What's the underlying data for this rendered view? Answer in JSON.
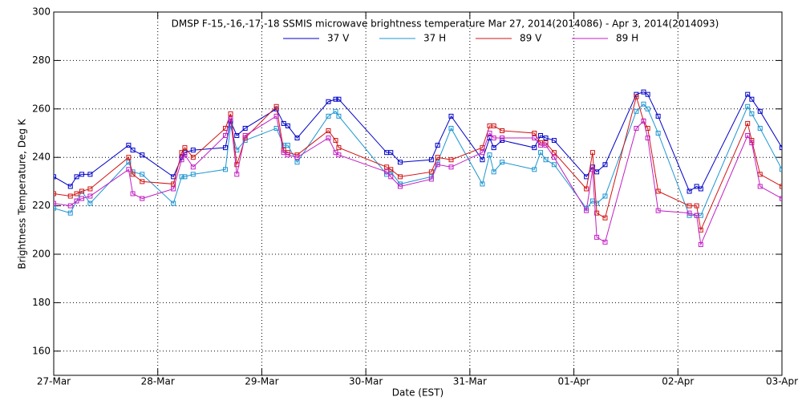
{
  "chart_data": {
    "type": "line",
    "title": "DMSP F-15,-16,-17,-18 SSMIS microwave brightness temperature Mar 27, 2014(2014086) - Apr  3, 2014(2014093)",
    "x_label": "Date (EST)",
    "y_label": "Brightness Temperature, Deg K",
    "x": [
      0,
      0.16,
      0.22,
      0.27,
      0.35,
      0.72,
      0.76,
      0.85,
      1.15,
      1.23,
      1.26,
      1.34,
      1.65,
      1.7,
      1.76,
      1.84,
      2.14,
      2.21,
      2.25,
      2.34,
      2.64,
      2.71,
      2.74,
      3.2,
      3.24,
      3.33,
      3.63,
      3.69,
      3.82,
      4.12,
      4.19,
      4.23,
      4.31,
      4.62,
      4.68,
      4.73,
      4.81,
      5.12,
      5.18,
      5.22,
      5.3,
      5.6,
      5.67,
      5.71,
      5.81,
      6.11,
      6.18,
      6.22,
      6.67,
      6.71,
      6.79,
      7
    ],
    "xlim": [
      0,
      7
    ],
    "xticks": [
      {
        "value": 0,
        "label": "27-Mar"
      },
      {
        "value": 1,
        "label": "28-Mar"
      },
      {
        "value": 2,
        "label": "29-Mar"
      },
      {
        "value": 3,
        "label": "30-Mar"
      },
      {
        "value": 4,
        "label": "31-Mar"
      },
      {
        "value": 5,
        "label": "01-Apr"
      },
      {
        "value": 6,
        "label": "02-Apr"
      },
      {
        "value": 7,
        "label": "03-Apr"
      }
    ],
    "ylim": [
      150,
      300
    ],
    "yticks": [
      160,
      180,
      200,
      220,
      240,
      260,
      280,
      300
    ],
    "grid": true,
    "series": [
      {
        "name": "37 V",
        "color": "#0000c8",
        "values": [
          232,
          228,
          232,
          233,
          233,
          245,
          243,
          241,
          232,
          240,
          242,
          243,
          244,
          255,
          249,
          252,
          260,
          254,
          253,
          248,
          263,
          264,
          264,
          242,
          242,
          238,
          239,
          245,
          257,
          239,
          248,
          244,
          247,
          244,
          249,
          248,
          247,
          232,
          236,
          234,
          237,
          266,
          267,
          266,
          257,
          226,
          228,
          227,
          266,
          264,
          259,
          244
        ]
      },
      {
        "name": "37 H",
        "color": "#1e96d2",
        "values": [
          219,
          217,
          222,
          226,
          221,
          238,
          234,
          233,
          221,
          232,
          232,
          233,
          235,
          253,
          243,
          247,
          252,
          245,
          245,
          238,
          257,
          259,
          257,
          233,
          234,
          229,
          232,
          238,
          252,
          229,
          241,
          234,
          238,
          235,
          242,
          239,
          237,
          219,
          222,
          221,
          224,
          259,
          262,
          260,
          250,
          216,
          216,
          216,
          261,
          258,
          252,
          235
        ]
      },
      {
        "name": "89 V",
        "color": "#d21414",
        "values": [
          225,
          224,
          225,
          226,
          227,
          240,
          233,
          230,
          229,
          242,
          244,
          240,
          252,
          258,
          237,
          248,
          261,
          243,
          242,
          241,
          251,
          247,
          244,
          236,
          235,
          232,
          234,
          240,
          239,
          244,
          253,
          253,
          251,
          250,
          246,
          246,
          242,
          227,
          242,
          217,
          215,
          265,
          255,
          252,
          226,
          220,
          220,
          210,
          254,
          247,
          233,
          228
        ]
      },
      {
        "name": "89 H",
        "color": "#c31ec3",
        "values": [
          221,
          220,
          222,
          223,
          224,
          235,
          225,
          223,
          227,
          239,
          241,
          236,
          249,
          256,
          233,
          249,
          257,
          242,
          241,
          240,
          248,
          242,
          241,
          234,
          232,
          228,
          231,
          237,
          236,
          242,
          250,
          248,
          248,
          248,
          245,
          245,
          240,
          218,
          235,
          207,
          205,
          252,
          255,
          248,
          218,
          217,
          216,
          204,
          249,
          246,
          228,
          223
        ]
      }
    ]
  }
}
